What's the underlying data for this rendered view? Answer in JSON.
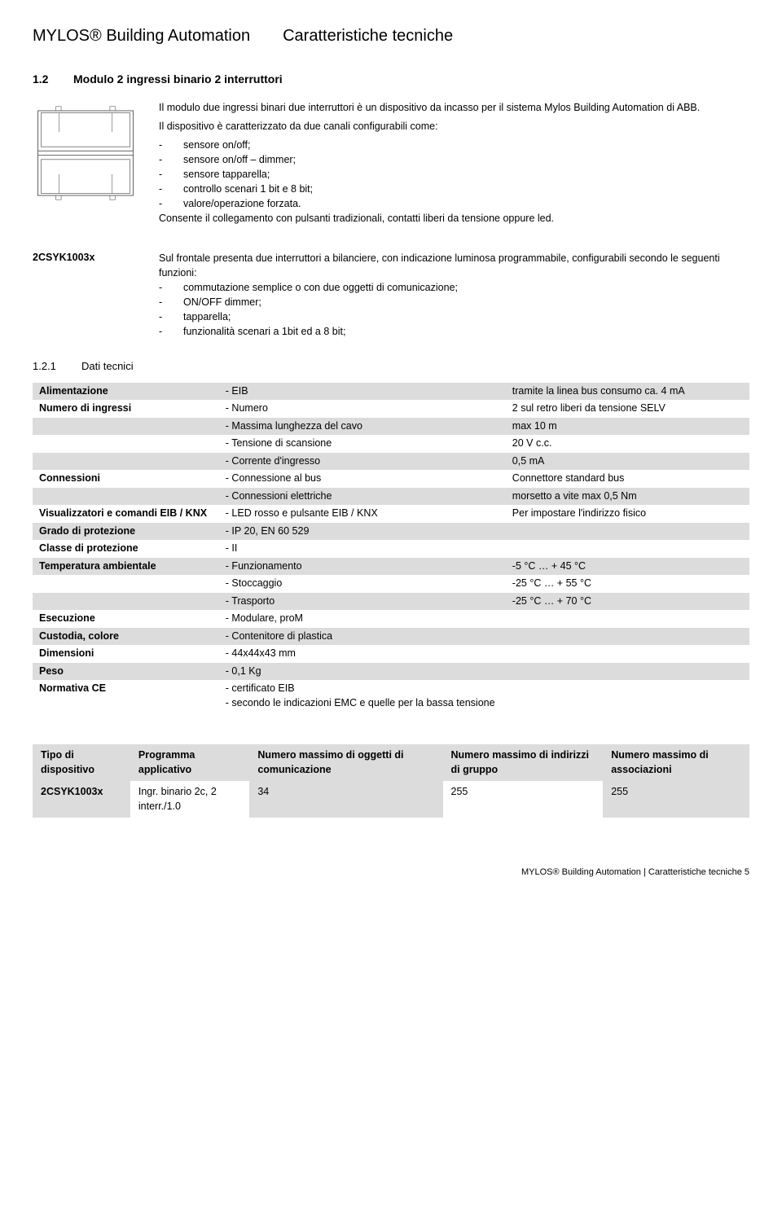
{
  "header": {
    "brand": "MYLOS® Building Automation",
    "title": "Caratteristiche tecniche"
  },
  "section": {
    "num": "1.2",
    "title": "Modulo 2 ingressi binario 2 interruttori"
  },
  "intro": {
    "p1": "Il modulo due ingressi binari due interruttori è un dispositivo da incasso per il sistema Mylos Building Automation di ABB.",
    "p2": "Il dispositivo è caratterizzato da due canali configurabili come:",
    "features": [
      "sensore on/off;",
      "sensore on/off – dimmer;",
      "sensore tapparella;",
      "controllo scenari 1 bit e 8 bit;",
      "valore/operazione forzata."
    ],
    "p3": "Consente il collegamento con pulsanti tradizionali, contatti liberi da tensione oppure led."
  },
  "partnum": "2CSYK1003x",
  "front": {
    "p1": "Sul frontale presenta due interruttori a bilanciere, con indicazione luminosa programmabile, configurabili secondo le seguenti funzioni:",
    "features": [
      "commutazione semplice o con due oggetti di comunicazione;",
      "ON/OFF dimmer;",
      "tapparella;",
      "funzionalità scenari a 1bit ed a 8 bit;"
    ]
  },
  "subsec": {
    "num": "1.2.1",
    "title": "Dati tecnici"
  },
  "spec": {
    "rows": [
      {
        "shade": true,
        "c1": "Alimentazione",
        "c2": "- EIB",
        "c3": "tramite la linea bus consumo ca. 4 mA"
      },
      {
        "shade": false,
        "c1": "Numero di ingressi",
        "c2": "- Numero",
        "c3": "2 sul retro liberi da tensione SELV"
      },
      {
        "shade": true,
        "c1": "",
        "c2": "- Massima lunghezza del cavo",
        "c3": "max 10 m"
      },
      {
        "shade": false,
        "c1": "",
        "c2": "- Tensione di scansione",
        "c3": "20 V c.c."
      },
      {
        "shade": true,
        "c1": "",
        "c2": "- Corrente d'ingresso",
        "c3": "0,5 mA"
      },
      {
        "shade": false,
        "c1": "Connessioni",
        "c2": "- Connessione al bus",
        "c3": "Connettore standard bus"
      },
      {
        "shade": true,
        "c1": "",
        "c2": "- Connessioni elettriche",
        "c3": "morsetto a vite max 0,5 Nm"
      },
      {
        "shade": false,
        "c1": "Visualizzatori e comandi EIB / KNX",
        "c2": "- LED rosso e pulsante EIB / KNX",
        "c3": "Per impostare l'indirizzo fisico"
      },
      {
        "shade": true,
        "c1": "Grado di protezione",
        "c2": "- IP 20, EN 60 529",
        "c3": ""
      },
      {
        "shade": false,
        "c1": "Classe di protezione",
        "c2": "- II",
        "c3": ""
      },
      {
        "shade": true,
        "c1": "Temperatura ambientale",
        "c2": "- Funzionamento",
        "c3": "-5 °C … + 45 °C"
      },
      {
        "shade": false,
        "c1": "",
        "c2": "- Stoccaggio",
        "c3": "-25 °C … + 55 °C"
      },
      {
        "shade": true,
        "c1": "",
        "c2": "- Trasporto",
        "c3": "-25 °C … + 70 °C"
      },
      {
        "shade": false,
        "c1": "Esecuzione",
        "c2": "- Modulare, proM",
        "c3": ""
      },
      {
        "shade": true,
        "c1": "Custodia, colore",
        "c2": "- Contenitore di plastica",
        "c3": ""
      },
      {
        "shade": false,
        "c1": "Dimensioni",
        "c2": "- 44x44x43 mm",
        "c3": ""
      },
      {
        "shade": true,
        "c1": "Peso",
        "c2": "- 0,1 Kg",
        "c3": ""
      },
      {
        "shade": false,
        "c1": "Normativa CE",
        "c2": "- certificato EIB\n- secondo le indicazioni EMC e quelle per la bassa tensione",
        "c3": ""
      }
    ]
  },
  "type_table": {
    "headers": [
      "Tipo di dispositivo",
      "Programma applicativo",
      "Numero massimo di oggetti di comunicazione",
      "Numero massimo di indirizzi di gruppo",
      "Numero massimo di associazioni"
    ],
    "row": {
      "device": "2CSYK1003x",
      "prog": "Ingr. binario 2c, 2 interr./1.0",
      "v1": "34",
      "v2": "255",
      "v3": "255"
    }
  },
  "footer": "MYLOS® Building Automation | Caratteristiche tecniche  5",
  "diagram": {
    "stroke": "#666666",
    "fill": "#ffffff",
    "stroke_width": 0.8
  }
}
